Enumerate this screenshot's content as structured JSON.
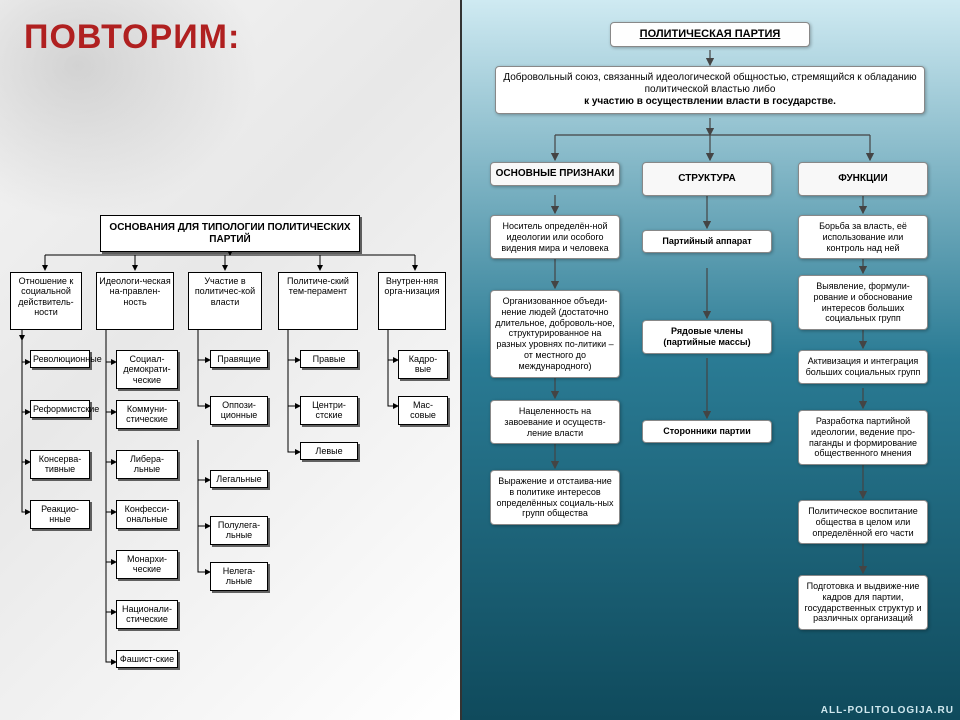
{
  "title": "ПОВТОРИМ:",
  "watermark": "ALL-POLITOLOGIJA.RU",
  "left": {
    "root": "ОСНОВАНИЯ ДЛЯ ТИПОЛОГИИ ПОЛИТИЧЕСКИХ ПАРТИЙ",
    "cols": [
      {
        "head": "Отношение к социальной действитель-ности",
        "items": [
          "Революционные",
          "Реформистские",
          "Консерва-тивные",
          "Реакцио-нные"
        ]
      },
      {
        "head": "Идеологи-ческая на-правлен-ность",
        "items": [
          "Социал-демократи-ческие",
          "Коммуни-стические",
          "Либера-льные",
          "Конфесси-ональные",
          "Монархи-ческие",
          "Национали-стические",
          "Фашист-ские"
        ]
      },
      {
        "head": "Участие в политичес-кой власти",
        "items": [
          "Правящие",
          "Оппози-ционные"
        ],
        "sub": [
          "Легальные",
          "Полулега-льные",
          "Нелега-льные"
        ]
      },
      {
        "head": "Политиче-ский тем-перамент",
        "items": [
          "Правые",
          "Центри-стские",
          "Левые"
        ]
      },
      {
        "head": "Внутрен-няя орга-низация",
        "items": [
          "Кадро-вые",
          "Мас-совые"
        ]
      }
    ]
  },
  "right": {
    "root": "ПОЛИТИЧЕСКАЯ ПАРТИЯ",
    "definition": "Добровольный союз, связанный идеологической общностью, стремящийся к обладанию политической властью либо",
    "definition_bold": "к участию в осуществлении власти в государстве.",
    "cols": [
      {
        "head": "ОСНОВНЫЕ ПРИЗНАКИ",
        "items": [
          "Носитель определён-ной идеологии или особого видения мира и человека",
          "Организованное объеди-нение людей (достаточно длительное, доброволь-ное, структурированное на разных уровнях по-литики – от местного до международного)",
          "Нацеленность на завоевание и осуществ-ление власти",
          "Выражение и отстаива-ние в политике интересов определённых социаль-ных групп общества"
        ]
      },
      {
        "head": "СТРУКТУРА",
        "items": [
          "Партийный аппарат",
          "Рядовые члены (партийные массы)",
          "Сторонники партии"
        ],
        "bold": true
      },
      {
        "head": "ФУНКЦИИ",
        "items": [
          "Борьба за власть, её использование или контроль над ней",
          "Выявление, формули-рование и обоснование интересов больших социальных групп",
          "Активизация и интеграция больших социальных групп",
          "Разработка партийной идеологии, ведение про-паганды и формирование общественного мнения",
          "Политическое воспитание общества в целом или определённой его части",
          "Подготовка и выдвиже-ние кадров для партии, государственных структур и различных организаций"
        ]
      }
    ]
  },
  "colors": {
    "title": "#b02020",
    "right_grad_top": "#cfeaf2",
    "right_grad_mid": "#2a7b94",
    "right_grad_bot": "#0f4a5c"
  }
}
